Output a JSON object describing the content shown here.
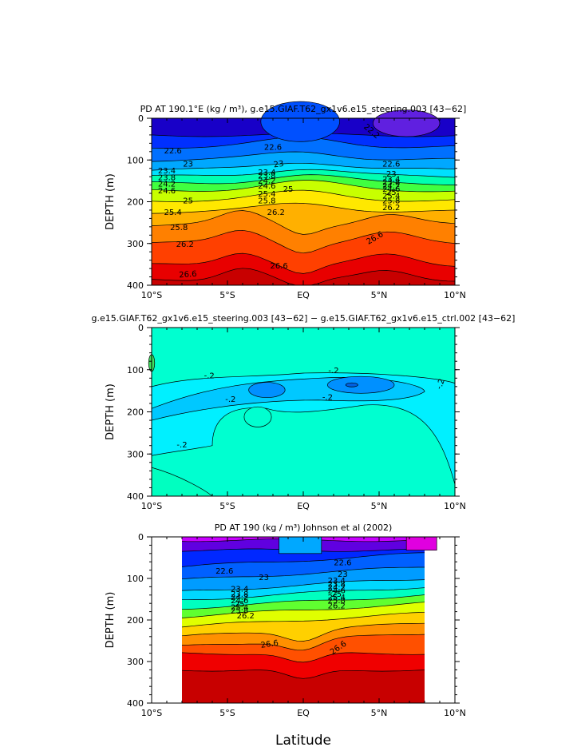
{
  "chart_data": [
    {
      "type": "contour",
      "title": "PD AT 190.1°E (kg / m³), g.e15.GIAF.T62_gx1v6.e15_steering.003 [43−62]",
      "xlabel": "",
      "ylabel": "DEPTH (m)",
      "x_ticks": [
        "10°S",
        "5°S",
        "EQ",
        "5°N",
        "10°N"
      ],
      "x_values": [
        -10,
        -5,
        0,
        5,
        10
      ],
      "y_ticks": [
        "0",
        "100",
        "200",
        "300",
        "400"
      ],
      "y_values": [
        0,
        100,
        200,
        300,
        400
      ],
      "ylim": [
        400,
        0
      ],
      "xlim": [
        -10,
        10
      ],
      "data_extent": [
        -10,
        10
      ],
      "colors": [
        "#1800c8",
        "#0030ff",
        "#0070ff",
        "#00a8ff",
        "#00e0ff",
        "#00ffb0",
        "#40ff40",
        "#c8ff00",
        "#ffe800",
        "#ffb000",
        "#ff8000",
        "#ff4000",
        "#e80000",
        "#c80000"
      ],
      "contour_labels": [
        "22.6",
        "23",
        "23.4",
        "23.8",
        "24.2",
        "24.6",
        "25",
        "25.4",
        "25.8",
        "26.2",
        "26.6",
        "22.6",
        "23",
        "23.4",
        "23.8",
        "24.2",
        "24.6",
        "25",
        "25.4",
        "25.8",
        "26.2",
        "26.6",
        "22.6",
        "23",
        "23.4",
        "23.8",
        "24.2",
        "24.6",
        "25",
        "25.4",
        "25.8",
        "26.2",
        "26.6",
        "22.2"
      ]
    },
    {
      "type": "contour",
      "title": "g.e15.GIAF.T62_gx1v6.e15_steering.003 [43−62] − g.e15.GIAF.T62_gx1v6.e15_ctrl.002 [43−62]",
      "xlabel": "",
      "ylabel": "DEPTH (m)",
      "x_ticks": [
        "10°S",
        "5°S",
        "EQ",
        "5°N",
        "10°N"
      ],
      "x_values": [
        -10,
        -5,
        0,
        5,
        10
      ],
      "y_ticks": [
        "0",
        "100",
        "200",
        "300",
        "400"
      ],
      "y_values": [
        0,
        100,
        200,
        300,
        400
      ],
      "ylim": [
        400,
        0
      ],
      "xlim": [
        -10,
        10
      ],
      "data_extent": [
        -10,
        10
      ],
      "colors": [
        "#00ffd0",
        "#00f0ff",
        "#00c8ff",
        "#0090ff"
      ],
      "contour_labels": [
        "-.2",
        "-.2",
        "-.2",
        "-.2",
        "-.2",
        "-.2"
      ]
    },
    {
      "type": "contour",
      "title": "PD AT 190 (kg / m³) Johnson et al (2002)",
      "xlabel": "Latitude",
      "ylabel": "DEPTH (m)",
      "x_ticks": [
        "10°S",
        "5°S",
        "EQ",
        "5°N",
        "10°N"
      ],
      "x_values": [
        -10,
        -5,
        0,
        5,
        10
      ],
      "y_ticks": [
        "0",
        "100",
        "200",
        "300",
        "400"
      ],
      "y_values": [
        0,
        100,
        200,
        300,
        400
      ],
      "ylim": [
        400,
        0
      ],
      "xlim": [
        -10,
        10
      ],
      "data_extent": [
        -8,
        8
      ],
      "colors": [
        "#c800ff",
        "#6000e0",
        "#0028ff",
        "#0060ff",
        "#009cff",
        "#00d8ff",
        "#00ffc0",
        "#60ff30",
        "#e0ff00",
        "#ffd000",
        "#ff9000",
        "#ff5000",
        "#f00000",
        "#c80000"
      ],
      "contour_labels": [
        "22.6",
        "23",
        "23.4",
        "23.8",
        "24.2",
        "24.6",
        "25",
        "25.4",
        "25.8",
        "26.2",
        "26.6",
        "22.6",
        "23",
        "23.4",
        "23.8",
        "24.2",
        "24.6",
        "25",
        "25.4",
        "25.8",
        "26.2",
        "26.6"
      ]
    }
  ]
}
